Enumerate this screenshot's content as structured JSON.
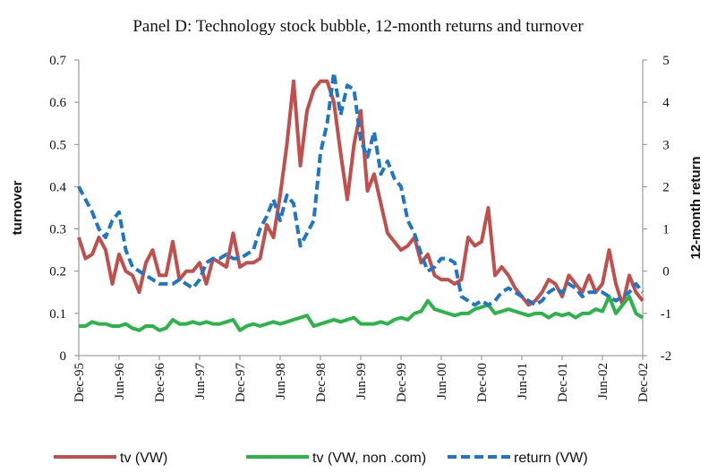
{
  "chart_data": {
    "type": "line",
    "title": "Panel D: Technology stock bubble, 12-month returns and turnover",
    "y_label": "turnover",
    "y2_label": "12-month return",
    "categories": [
      "Dec-95",
      null,
      null,
      null,
      null,
      null,
      "Jun-96",
      null,
      null,
      null,
      null,
      null,
      "Dec-96",
      null,
      null,
      null,
      null,
      null,
      "Jun-97",
      null,
      null,
      null,
      null,
      null,
      "Dec-97",
      null,
      null,
      null,
      null,
      null,
      "Jun-98",
      null,
      null,
      null,
      null,
      null,
      "Dec-98",
      null,
      null,
      null,
      null,
      null,
      "Jun-99",
      null,
      null,
      null,
      null,
      null,
      "Dec-99",
      null,
      null,
      null,
      null,
      null,
      "Jun-00",
      null,
      null,
      null,
      null,
      null,
      "Dec-00",
      null,
      null,
      null,
      null,
      null,
      "Jun-01",
      null,
      null,
      null,
      null,
      null,
      "Dec-01",
      null,
      null,
      null,
      null,
      null,
      "Jun-02",
      null,
      null,
      null,
      null,
      null,
      "Dec-02"
    ],
    "ylim": [
      0,
      0.7
    ],
    "yticks": [
      0,
      0.1,
      0.2,
      0.3,
      0.4,
      0.5,
      0.6,
      0.7
    ],
    "y2lim": [
      -2,
      5
    ],
    "y2ticks": [
      -2,
      -1,
      0,
      1,
      2,
      3,
      4,
      5
    ],
    "legend": "bottom",
    "series": [
      {
        "name": "tv (VW)",
        "color": "#c0504d",
        "dash": false,
        "values": [
          0.28,
          0.23,
          0.24,
          0.28,
          0.25,
          0.17,
          0.24,
          0.2,
          0.19,
          0.15,
          0.22,
          0.25,
          0.19,
          0.19,
          0.27,
          0.18,
          0.2,
          0.2,
          0.22,
          0.17,
          0.23,
          0.22,
          0.21,
          0.29,
          0.21,
          0.22,
          0.22,
          0.23,
          0.31,
          0.28,
          0.38,
          0.5,
          0.65,
          0.45,
          0.58,
          0.63,
          0.65,
          0.65,
          0.6,
          0.48,
          0.37,
          0.5,
          0.58,
          0.39,
          0.43,
          0.36,
          0.29,
          0.27,
          0.25,
          0.26,
          0.28,
          0.22,
          0.24,
          0.19,
          0.18,
          0.18,
          0.17,
          0.18,
          0.28,
          0.26,
          0.27,
          0.35,
          0.19,
          0.21,
          0.19,
          0.16,
          0.14,
          0.12,
          0.13,
          0.15,
          0.18,
          0.17,
          0.14,
          0.19,
          0.17,
          0.15,
          0.19,
          0.15,
          0.17,
          0.25,
          0.17,
          0.12,
          0.19,
          0.15,
          0.13
        ]
      },
      {
        "name": "tv (VW, non .com)",
        "color": "#2db34a",
        "dash": false,
        "values": [
          0.07,
          0.07,
          0.08,
          0.075,
          0.075,
          0.07,
          0.07,
          0.075,
          0.065,
          0.06,
          0.07,
          0.07,
          0.06,
          0.065,
          0.085,
          0.075,
          0.075,
          0.08,
          0.075,
          0.08,
          0.075,
          0.075,
          0.08,
          0.085,
          0.06,
          0.07,
          0.075,
          0.07,
          0.075,
          0.08,
          0.075,
          0.08,
          0.085,
          0.09,
          0.095,
          0.07,
          0.075,
          0.08,
          0.085,
          0.08,
          0.085,
          0.09,
          0.075,
          0.075,
          0.075,
          0.08,
          0.075,
          0.085,
          0.09,
          0.085,
          0.1,
          0.105,
          0.13,
          0.11,
          0.105,
          0.1,
          0.095,
          0.1,
          0.1,
          0.11,
          0.115,
          0.12,
          0.1,
          0.105,
          0.11,
          0.105,
          0.1,
          0.095,
          0.1,
          0.1,
          0.09,
          0.1,
          0.095,
          0.1,
          0.09,
          0.1,
          0.1,
          0.11,
          0.105,
          0.14,
          0.1,
          0.12,
          0.14,
          0.1,
          0.09
        ]
      },
      {
        "name": "return (VW)",
        "color": "#1f77c4",
        "dash": true,
        "axis": "y2",
        "values": [
          2.0,
          1.7,
          1.4,
          1.0,
          0.8,
          1.2,
          1.4,
          0.5,
          0.1,
          0.0,
          -0.1,
          -0.2,
          -0.3,
          -0.3,
          -0.3,
          -0.2,
          -0.3,
          -0.4,
          -0.2,
          0.2,
          0.3,
          0.3,
          0.4,
          0.3,
          0.3,
          0.4,
          0.5,
          1.0,
          1.3,
          1.7,
          1.2,
          1.8,
          1.6,
          0.6,
          0.9,
          1.2,
          2.8,
          3.5,
          4.7,
          3.7,
          4.4,
          4.3,
          3.1,
          2.7,
          3.3,
          2.3,
          2.6,
          2.2,
          2.0,
          1.2,
          0.9,
          0.4,
          0.0,
          0.1,
          0.3,
          0.3,
          0.2,
          -0.6,
          -0.7,
          -0.8,
          -0.7,
          -0.8,
          -0.7,
          -0.5,
          -0.4,
          -0.5,
          -0.6,
          -0.7,
          -0.8,
          -0.7,
          -0.5,
          -0.4,
          -0.5,
          -0.3,
          -0.4,
          -0.6,
          -0.5,
          -0.5,
          -0.5,
          -0.6,
          -0.7,
          -0.6,
          -0.5,
          -0.3,
          -0.5
        ]
      }
    ]
  }
}
